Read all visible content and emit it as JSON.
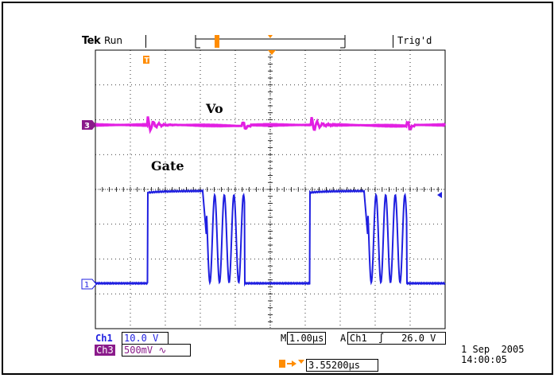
{
  "header": {
    "brand": "Tek",
    "status": "Run",
    "trigger_state": "Trig'd"
  },
  "waveform_labels": {
    "vo": "Vo",
    "gate": "Gate"
  },
  "markers": {
    "ch3": "3",
    "ch1": "1",
    "trigger_t": "T"
  },
  "readouts": {
    "ch1_label": "Ch1",
    "ch1_scale": "10.0 V",
    "ch3_label": "Ch3",
    "ch3_scale": "500mV",
    "ch3_coupling_icon": "∿",
    "timebase_prefix": "M",
    "timebase": "1.00µs",
    "trigger_mode": "A",
    "trigger_source": "Ch1",
    "trigger_slope_icon": "∫",
    "trigger_level": "26.0 V",
    "trigger_position": "3.55200µs",
    "date": "1 Sep  2005",
    "time": "14:00:05"
  },
  "colors": {
    "ch1": "#1f1fe0",
    "ch3": "#e21fe2",
    "ch3_dark": "#8a1a8a",
    "trigger": "#ff8c00",
    "grid": "#000000"
  }
}
